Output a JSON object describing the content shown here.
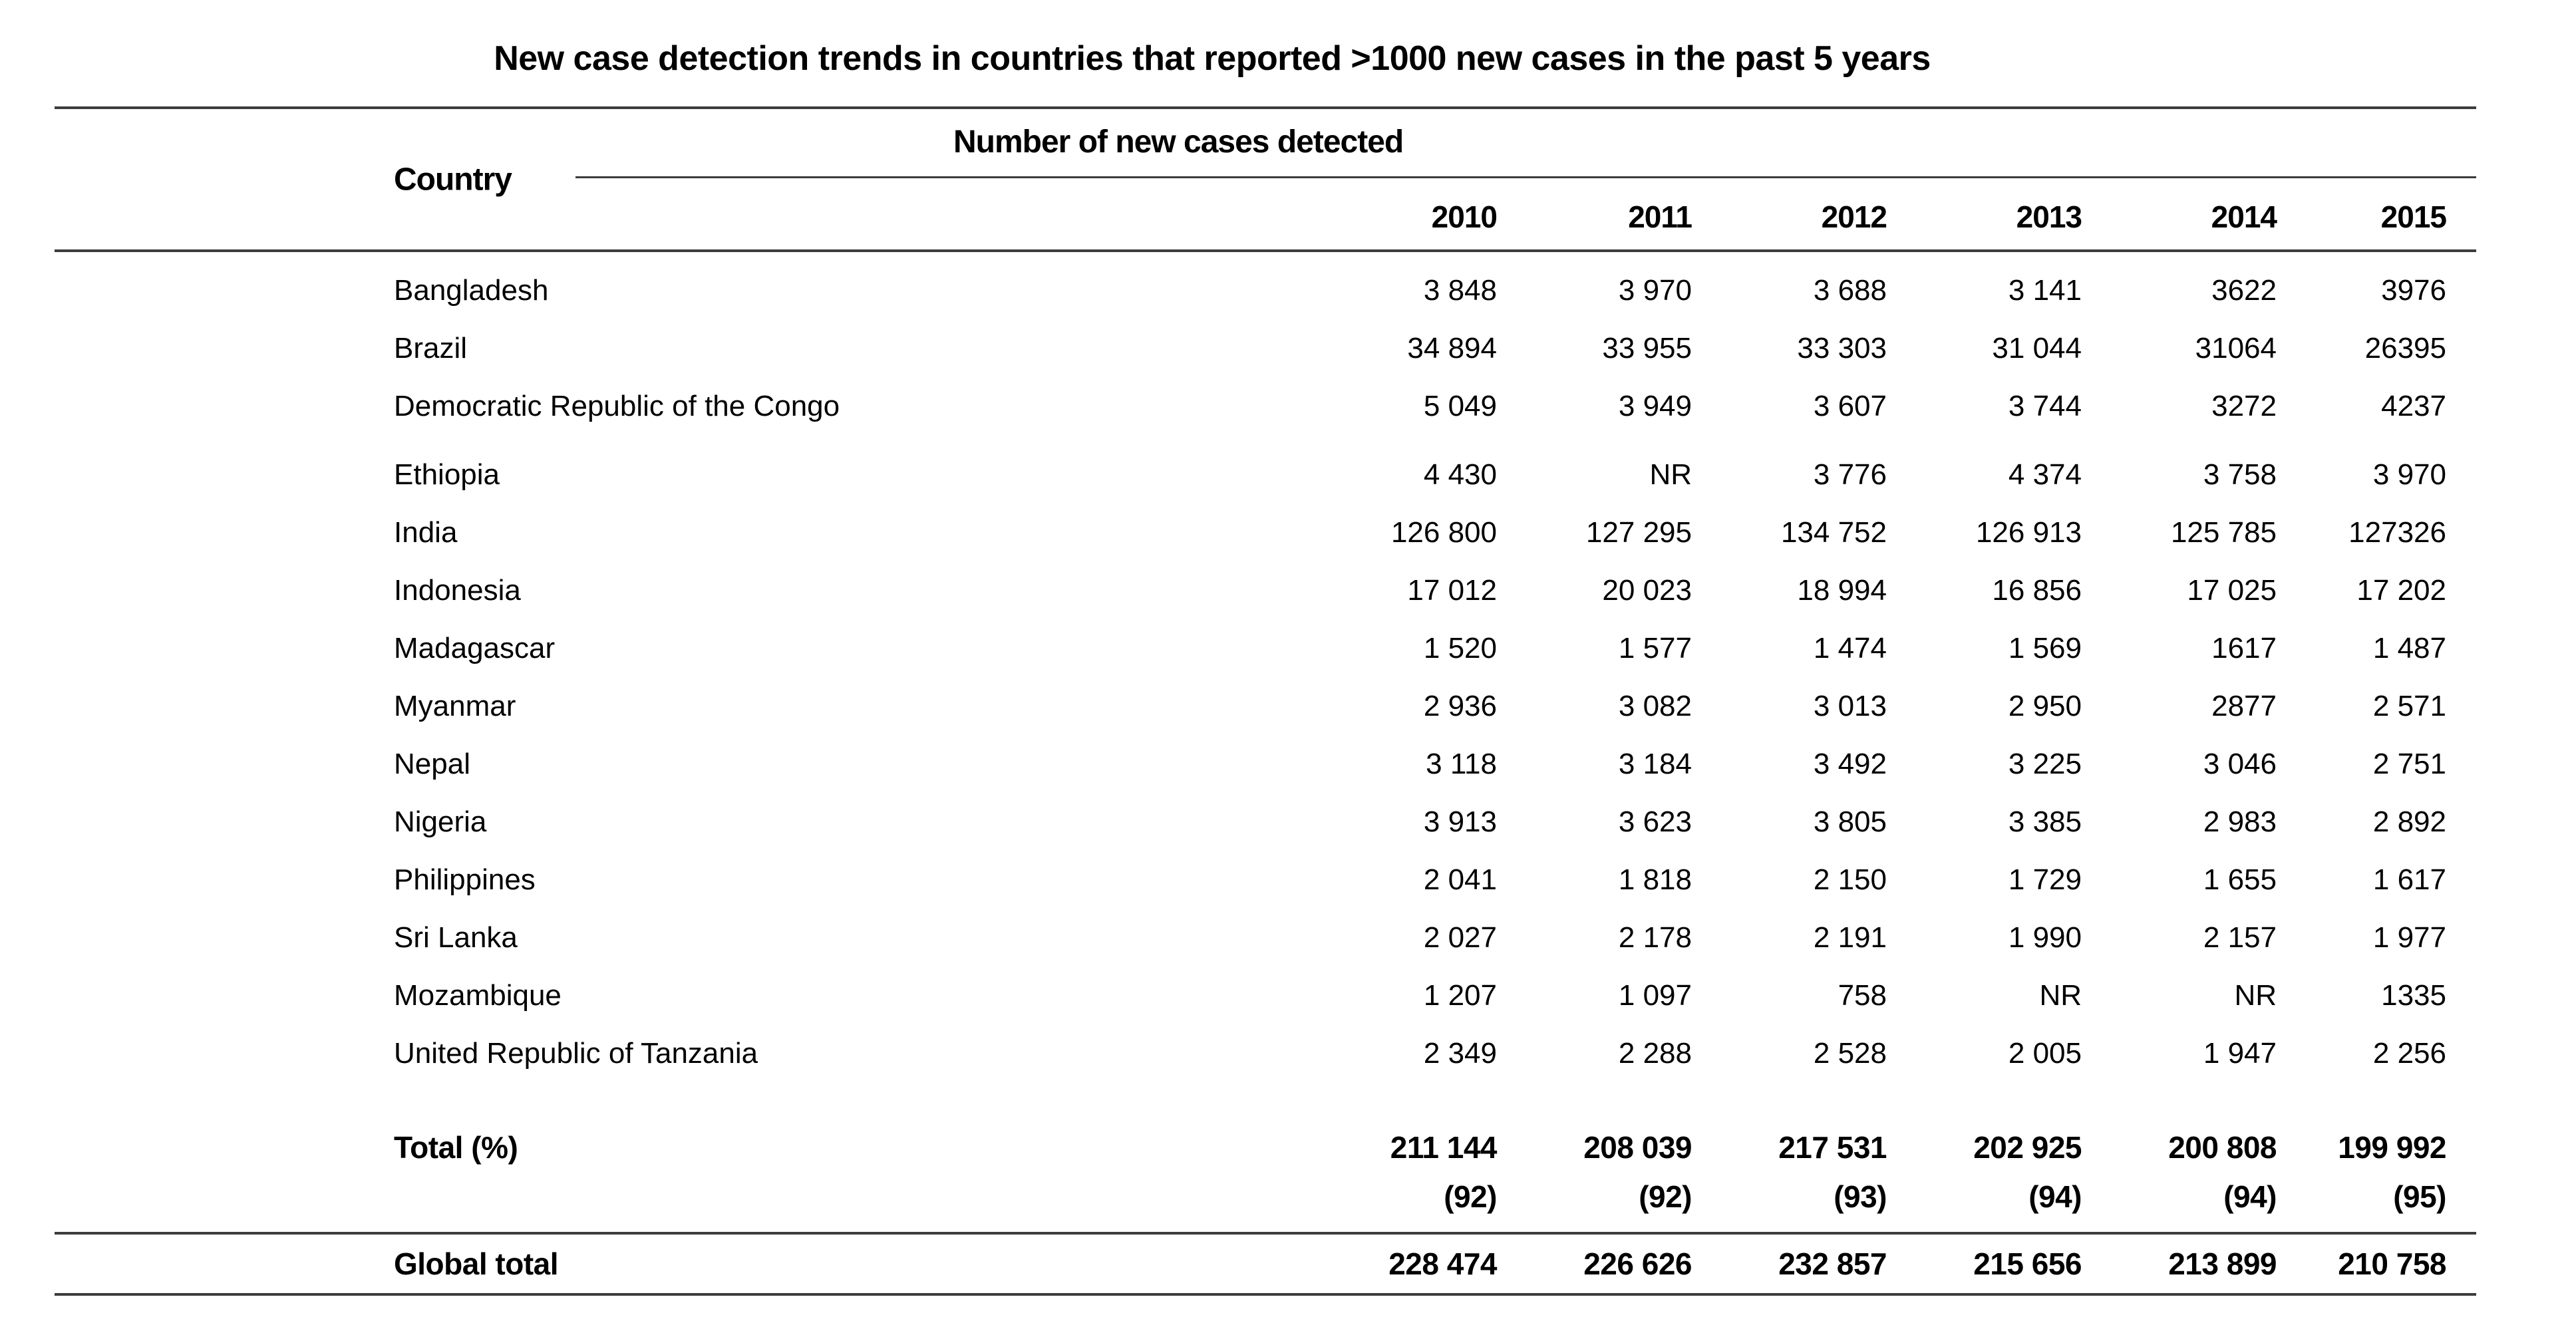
{
  "title": "New case detection trends in countries that reported >1000 new cases in the past 5 years",
  "table": {
    "country_header": "Country",
    "group_header": "Number of new cases detected",
    "years": [
      "2010",
      "2011",
      "2012",
      "2013",
      "2014",
      "2015"
    ],
    "rows": [
      {
        "country": "Bangladesh",
        "values": [
          "3 848",
          "3 970",
          "3 688",
          "3 141",
          "3622",
          "3976"
        ]
      },
      {
        "country": "Brazil",
        "values": [
          "34 894",
          "33 955",
          "33 303",
          "31 044",
          "31064",
          "26395"
        ]
      },
      {
        "country": "Democratic Republic of the Congo",
        "values": [
          "5 049",
          "3 949",
          "3 607",
          "3 744",
          "3272",
          "4237"
        ]
      },
      {
        "country": "Ethiopia",
        "values": [
          "4 430",
          "NR",
          "3 776",
          "4 374",
          "3 758",
          "3 970"
        ]
      },
      {
        "country": "India",
        "values": [
          "126 800",
          "127 295",
          "134 752",
          "126 913",
          "125 785",
          "127326"
        ]
      },
      {
        "country": "Indonesia",
        "values": [
          "17 012",
          "20 023",
          "18 994",
          "16 856",
          "17 025",
          "17 202"
        ]
      },
      {
        "country": "Madagascar",
        "values": [
          "1 520",
          "1 577",
          "1 474",
          "1 569",
          "1617",
          "1 487"
        ]
      },
      {
        "country": "Myanmar",
        "values": [
          "2 936",
          "3 082",
          "3 013",
          "2 950",
          "2877",
          "2 571"
        ]
      },
      {
        "country": "Nepal",
        "values": [
          "3 118",
          "3 184",
          "3 492",
          "3 225",
          "3 046",
          "2 751"
        ]
      },
      {
        "country": "Nigeria",
        "values": [
          "3 913",
          "3 623",
          "3 805",
          "3 385",
          "2 983",
          "2 892"
        ]
      },
      {
        "country": "Philippines",
        "values": [
          "2 041",
          "1 818",
          "2 150",
          "1 729",
          "1 655",
          "1 617"
        ]
      },
      {
        "country": "Sri Lanka",
        "values": [
          "2 027",
          "2 178",
          "2 191",
          "1 990",
          "2 157",
          "1 977"
        ]
      },
      {
        "country": "Mozambique",
        "values": [
          "1 207",
          "1 097",
          "758",
          "NR",
          "NR",
          "1335"
        ]
      },
      {
        "country": "United Republic of Tanzania",
        "values": [
          "2 349",
          "2 288",
          "2 528",
          "2 005",
          "1 947",
          "2 256"
        ]
      }
    ],
    "total_label": "Total (%)",
    "total_values": [
      "211 144",
      "208 039",
      "217 531",
      "202 925",
      "200 808",
      "199 992"
    ],
    "total_percents": [
      "(92)",
      "(92)",
      "(93)",
      "(94)",
      "(94)",
      "(95)"
    ],
    "global_label": "Global total",
    "global_values": [
      "228 474",
      "226 626",
      "232 857",
      "215 656",
      "213 899",
      "210 758"
    ]
  }
}
